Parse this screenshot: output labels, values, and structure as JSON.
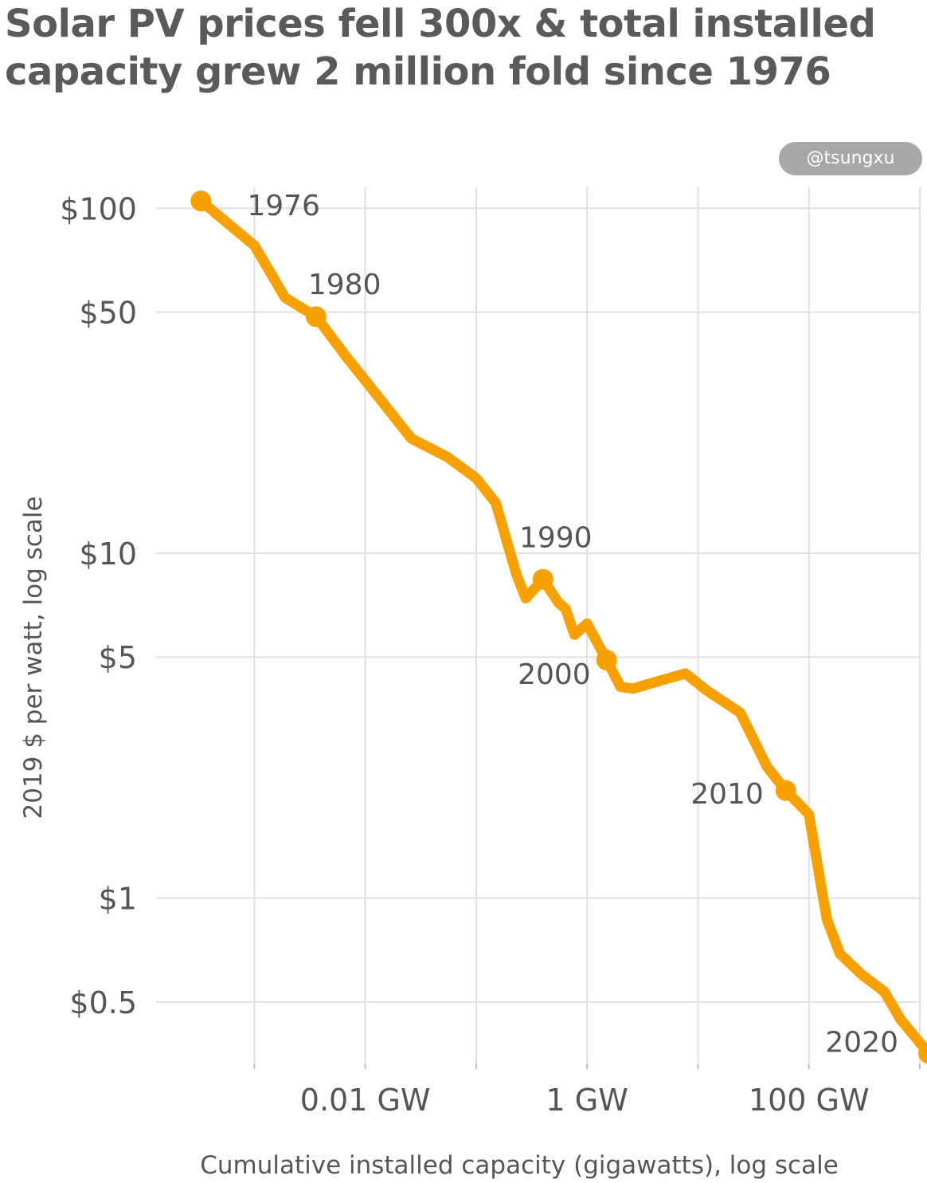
{
  "header": {
    "title": "Solar PV prices fell 300x & total installed capacity grew 2 million fold since 1976",
    "badge": "@tsungxu"
  },
  "colors": {
    "line": "#f7a100",
    "grid": "#e0e0e0",
    "text": "#555555",
    "title": "#5a5a5a"
  },
  "chart_data": {
    "type": "line",
    "title": "Solar PV prices fell 300x & total installed capacity grew 2 million fold since 1976",
    "xlabel": "Cumulative installed capacity (gigawatts), log scale",
    "ylabel": "2019 $ per watt, log scale",
    "x_scale": "log",
    "y_scale": "log",
    "xlim": [
      0.00013,
      1000
    ],
    "ylim": [
      0.33,
      115
    ],
    "grid": true,
    "x_ticks": [
      {
        "value": 0.01,
        "label": "0.01 GW"
      },
      {
        "value": 1,
        "label": "1 GW"
      },
      {
        "value": 100,
        "label": "100 GW"
      }
    ],
    "y_ticks": [
      {
        "value": 100,
        "label": "$100"
      },
      {
        "value": 50,
        "label": "$50"
      },
      {
        "value": 10,
        "label": "$10"
      },
      {
        "value": 5,
        "label": "$5"
      },
      {
        "value": 1,
        "label": "$1"
      },
      {
        "value": 0.5,
        "label": "$0.5"
      }
    ],
    "series": [
      {
        "points": [
          {
            "x": 0.00033,
            "y": 105
          },
          {
            "x": 0.001,
            "y": 78
          },
          {
            "x": 0.0019,
            "y": 55
          },
          {
            "x": 0.0036,
            "y": 48.5
          },
          {
            "x": 0.0068,
            "y": 37
          },
          {
            "x": 0.013,
            "y": 28.5
          },
          {
            "x": 0.026,
            "y": 21.5
          },
          {
            "x": 0.055,
            "y": 19
          },
          {
            "x": 0.1,
            "y": 16.5
          },
          {
            "x": 0.15,
            "y": 14
          },
          {
            "x": 0.23,
            "y": 8.7
          },
          {
            "x": 0.28,
            "y": 7.4
          },
          {
            "x": 0.4,
            "y": 8.4
          },
          {
            "x": 0.55,
            "y": 7.2
          },
          {
            "x": 0.64,
            "y": 6.9
          },
          {
            "x": 0.77,
            "y": 5.8
          },
          {
            "x": 1.0,
            "y": 6.25
          },
          {
            "x": 1.5,
            "y": 4.9
          },
          {
            "x": 2.0,
            "y": 4.1
          },
          {
            "x": 2.6,
            "y": 4.05
          },
          {
            "x": 4.9,
            "y": 4.3
          },
          {
            "x": 7.7,
            "y": 4.48
          },
          {
            "x": 12,
            "y": 4.0
          },
          {
            "x": 24,
            "y": 3.45
          },
          {
            "x": 42,
            "y": 2.4
          },
          {
            "x": 62,
            "y": 2.05
          },
          {
            "x": 100,
            "y": 1.75
          },
          {
            "x": 145,
            "y": 0.87
          },
          {
            "x": 190,
            "y": 0.69
          },
          {
            "x": 300,
            "y": 0.6
          },
          {
            "x": 480,
            "y": 0.535
          },
          {
            "x": 670,
            "y": 0.445
          },
          {
            "x": 1200,
            "y": 0.355
          }
        ]
      }
    ],
    "highlighted": [
      {
        "year": "1976",
        "x": 0.00033,
        "y": 105,
        "label_pos": "right"
      },
      {
        "year": "1980",
        "x": 0.0036,
        "y": 48.5,
        "label_pos": "above-right"
      },
      {
        "year": "1990",
        "x": 0.4,
        "y": 8.4,
        "label_pos": "above"
      },
      {
        "year": "2000",
        "x": 1.5,
        "y": 4.9,
        "label_pos": "below-left"
      },
      {
        "year": "2010",
        "x": 62,
        "y": 2.05,
        "label_pos": "left"
      },
      {
        "year": "2020",
        "x": 1200,
        "y": 0.355,
        "label_pos": "above-left"
      }
    ]
  }
}
